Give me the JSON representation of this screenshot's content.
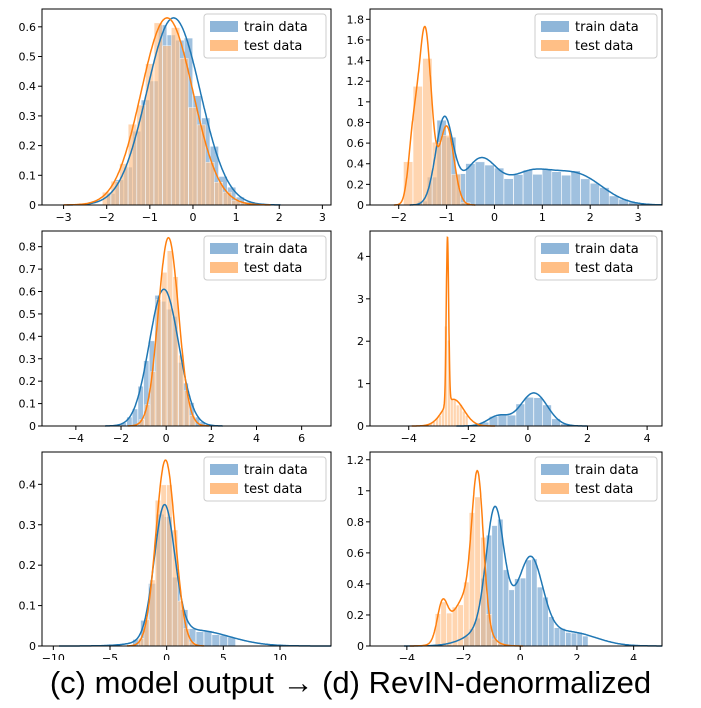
{
  "caption": "(c) model output → (d) RevIN-denormalized",
  "colors": {
    "train": "#1f77b4",
    "test": "#ff7f0e",
    "train_fill": "#8fb6d9",
    "test_fill": "#ffbf86"
  },
  "chart_data": [
    {
      "type": "histogram-kde",
      "panel": "top-left",
      "xlim": [
        -3.5,
        3.2
      ],
      "ylim": [
        0,
        0.66
      ],
      "xticks": [
        -3,
        -2,
        -1,
        0,
        1,
        2,
        3
      ],
      "yticks": [
        0,
        0.1,
        0.2,
        0.3,
        0.4,
        0.5,
        0.6
      ],
      "legend": [
        "train data",
        "test data"
      ],
      "series": [
        {
          "name": "train data",
          "components": [
            {
              "w": 1,
              "mu": -0.45,
              "sd": 0.62
            }
          ],
          "peak": 0.63,
          "bins": {
            "start": -2.0,
            "width": 0.2,
            "count": 20
          }
        },
        {
          "name": "test data",
          "components": [
            {
              "w": 1,
              "mu": -0.6,
              "sd": 0.6
            }
          ],
          "peak": 0.63,
          "bins": {
            "start": -2.1,
            "width": 0.2,
            "count": 20
          }
        }
      ]
    },
    {
      "type": "histogram-kde",
      "panel": "top-right",
      "xlim": [
        -2.6,
        3.5
      ],
      "ylim": [
        0,
        1.9
      ],
      "xticks": [
        -2,
        -1,
        0,
        1,
        2,
        3
      ],
      "yticks": [
        0,
        0.2,
        0.4,
        0.6,
        0.8,
        1.0,
        1.2,
        1.4,
        1.6,
        1.8
      ],
      "legend": [
        "train data",
        "test data"
      ],
      "series": [
        {
          "name": "train data",
          "components": [
            {
              "w": 0.75,
              "mu": -1.05,
              "sd": 0.18
            },
            {
              "w": 0.4,
              "mu": -0.3,
              "sd": 0.35
            },
            {
              "w": 0.25,
              "mu": 0.7,
              "sd": 0.45
            },
            {
              "w": 0.27,
              "mu": 1.7,
              "sd": 0.55
            }
          ],
          "peak": 0.86,
          "bins": {
            "start": -1.8,
            "width": 0.2,
            "count": 25
          }
        },
        {
          "name": "test data",
          "components": [
            {
              "w": 1,
              "mu": -1.45,
              "sd": 0.13
            },
            {
              "w": 0.35,
              "mu": -1.7,
              "sd": 0.1
            },
            {
              "w": 0.45,
              "mu": -1.0,
              "sd": 0.15
            }
          ],
          "peak": 1.73,
          "bins": {
            "start": -1.9,
            "width": 0.2,
            "count": 7
          }
        }
      ]
    },
    {
      "type": "histogram-kde",
      "panel": "middle-left",
      "xlim": [
        -5.5,
        7.3
      ],
      "ylim": [
        0,
        0.87
      ],
      "xticks": [
        -4,
        -2,
        0,
        2,
        4,
        6
      ],
      "yticks": [
        0,
        0.1,
        0.2,
        0.3,
        0.4,
        0.5,
        0.6,
        0.7,
        0.8
      ],
      "legend": [
        "train data",
        "test data"
      ],
      "series": [
        {
          "name": "train data",
          "components": [
            {
              "w": 1,
              "mu": -0.1,
              "sd": 0.65
            }
          ],
          "peak": 0.61,
          "bins": {
            "start": -2.0,
            "width": 0.25,
            "count": 16
          }
        },
        {
          "name": "test data",
          "components": [
            {
              "w": 1,
              "mu": 0.1,
              "sd": 0.45
            }
          ],
          "peak": 0.84,
          "bins": {
            "start": -1.2,
            "width": 0.25,
            "count": 10
          }
        }
      ]
    },
    {
      "type": "histogram-kde",
      "panel": "middle-right",
      "xlim": [
        -5.3,
        4.5
      ],
      "ylim": [
        0,
        4.6
      ],
      "xticks": [
        -4,
        -2,
        0,
        2,
        4
      ],
      "yticks": [
        0,
        1.0,
        2.0,
        3.0,
        4.0
      ],
      "legend": [
        "train data",
        "test data"
      ],
      "series": [
        {
          "name": "train data",
          "components": [
            {
              "w": 1,
              "mu": 0.2,
              "sd": 0.45
            },
            {
              "w": 0.3,
              "mu": -1.0,
              "sd": 0.35
            }
          ],
          "peak": 0.78,
          "bins": {
            "start": -2.2,
            "width": 0.3,
            "count": 14
          }
        },
        {
          "name": "test data",
          "components": [
            {
              "w": 1,
              "mu": -2.7,
              "sd": 0.04
            },
            {
              "w": 0.16,
              "mu": -2.5,
              "sd": 0.35
            }
          ],
          "peak": 4.45,
          "bins": {
            "start": -3.4,
            "width": 0.1,
            "count": 14
          }
        }
      ]
    },
    {
      "type": "histogram-kde",
      "panel": "bottom-left",
      "xlim": [
        -11,
        14.5
      ],
      "ylim": [
        0,
        0.48
      ],
      "xticks": [
        -10,
        -5,
        0,
        5,
        10
      ],
      "yticks": [
        0,
        0.1,
        0.2,
        0.3,
        0.4
      ],
      "legend": [
        "train data",
        "test data"
      ],
      "series": [
        {
          "name": "train data",
          "components": [
            {
              "w": 1,
              "mu": -0.2,
              "sd": 0.9
            },
            {
              "w": 0.12,
              "mu": 2.5,
              "sd": 3.0
            }
          ],
          "peak": 0.35,
          "bins": {
            "start": -3.0,
            "width": 0.7,
            "count": 13
          }
        },
        {
          "name": "test data",
          "components": [
            {
              "w": 1,
              "mu": -0.1,
              "sd": 0.85
            }
          ],
          "peak": 0.46,
          "bins": {
            "start": -2.5,
            "width": 0.5,
            "count": 10
          }
        }
      ]
    },
    {
      "type": "histogram-kde",
      "panel": "bottom-right",
      "xlim": [
        -5.3,
        5.0
      ],
      "ylim": [
        0,
        1.25
      ],
      "xticks": [
        -4,
        -2,
        0,
        2,
        4
      ],
      "yticks": [
        0,
        0.2,
        0.4,
        0.6,
        0.8,
        1.0,
        1.2
      ],
      "legend": [
        "train data",
        "test data"
      ],
      "series": [
        {
          "name": "train data",
          "components": [
            {
              "w": 1,
              "mu": -0.9,
              "sd": 0.3
            },
            {
              "w": 0.6,
              "mu": 0.4,
              "sd": 0.4
            },
            {
              "w": 0.3,
              "mu": -0.5,
              "sd": 0.9
            },
            {
              "w": 0.12,
              "mu": 1.8,
              "sd": 0.9
            }
          ],
          "peak": 0.9,
          "bins": {
            "start": -2.0,
            "width": 0.2,
            "count": 22
          }
        },
        {
          "name": "test data",
          "components": [
            {
              "w": 1,
              "mu": -1.5,
              "sd": 0.2
            },
            {
              "w": 0.25,
              "mu": -2.75,
              "sd": 0.18
            },
            {
              "w": 0.35,
              "mu": -1.9,
              "sd": 0.5
            }
          ],
          "peak": 1.13,
          "bins": {
            "start": -3.0,
            "width": 0.2,
            "count": 12
          }
        }
      ]
    }
  ]
}
